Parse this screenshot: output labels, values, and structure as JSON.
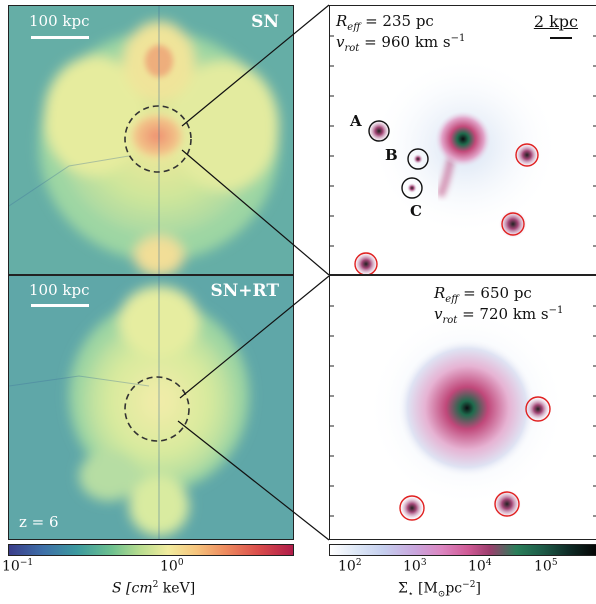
{
  "panels": {
    "top_left": {
      "scale_label": "100 kpc",
      "run_label": "SN"
    },
    "bottom_left": {
      "scale_label": "100 kpc",
      "run_label": "SN+RT",
      "redshift_label": "z = 6"
    },
    "top_right": {
      "scale_label": "2 kpc",
      "reff_label": "R",
      "reff_sub": "eff",
      "reff_value": "= 235 pc",
      "vrot_label": "v",
      "vrot_sub": "rot",
      "vrot_value": "= 960 km s",
      "vrot_exp": "−1",
      "clump_labels": [
        "A",
        "B",
        "C"
      ]
    },
    "bottom_right": {
      "reff_label": "R",
      "reff_sub": "eff",
      "reff_value": "= 650 pc",
      "vrot_label": "v",
      "vrot_sub": "rot",
      "vrot_value": "= 720 km s",
      "vrot_exp": "−1"
    }
  },
  "colorbars": {
    "entropy": {
      "tick_labels": [
        "10",
        "10"
      ],
      "tick_exps": [
        "−1",
        "0"
      ],
      "label": "S [cm",
      "label_exp": "2",
      "label_tail": " keV]",
      "range": [
        0.1,
        5
      ]
    },
    "surface_density": {
      "tick_labels": [
        "10",
        "10",
        "10",
        "10"
      ],
      "tick_exps": [
        "2",
        "3",
        "4",
        "5"
      ],
      "label": "Σ",
      "label_sub": "⋆",
      "label_tail": " [M",
      "label_sun": "⊙",
      "label_tail2": "pc",
      "label_exp": "−2",
      "label_end": "]",
      "range": [
        50,
        400000
      ]
    }
  }
}
